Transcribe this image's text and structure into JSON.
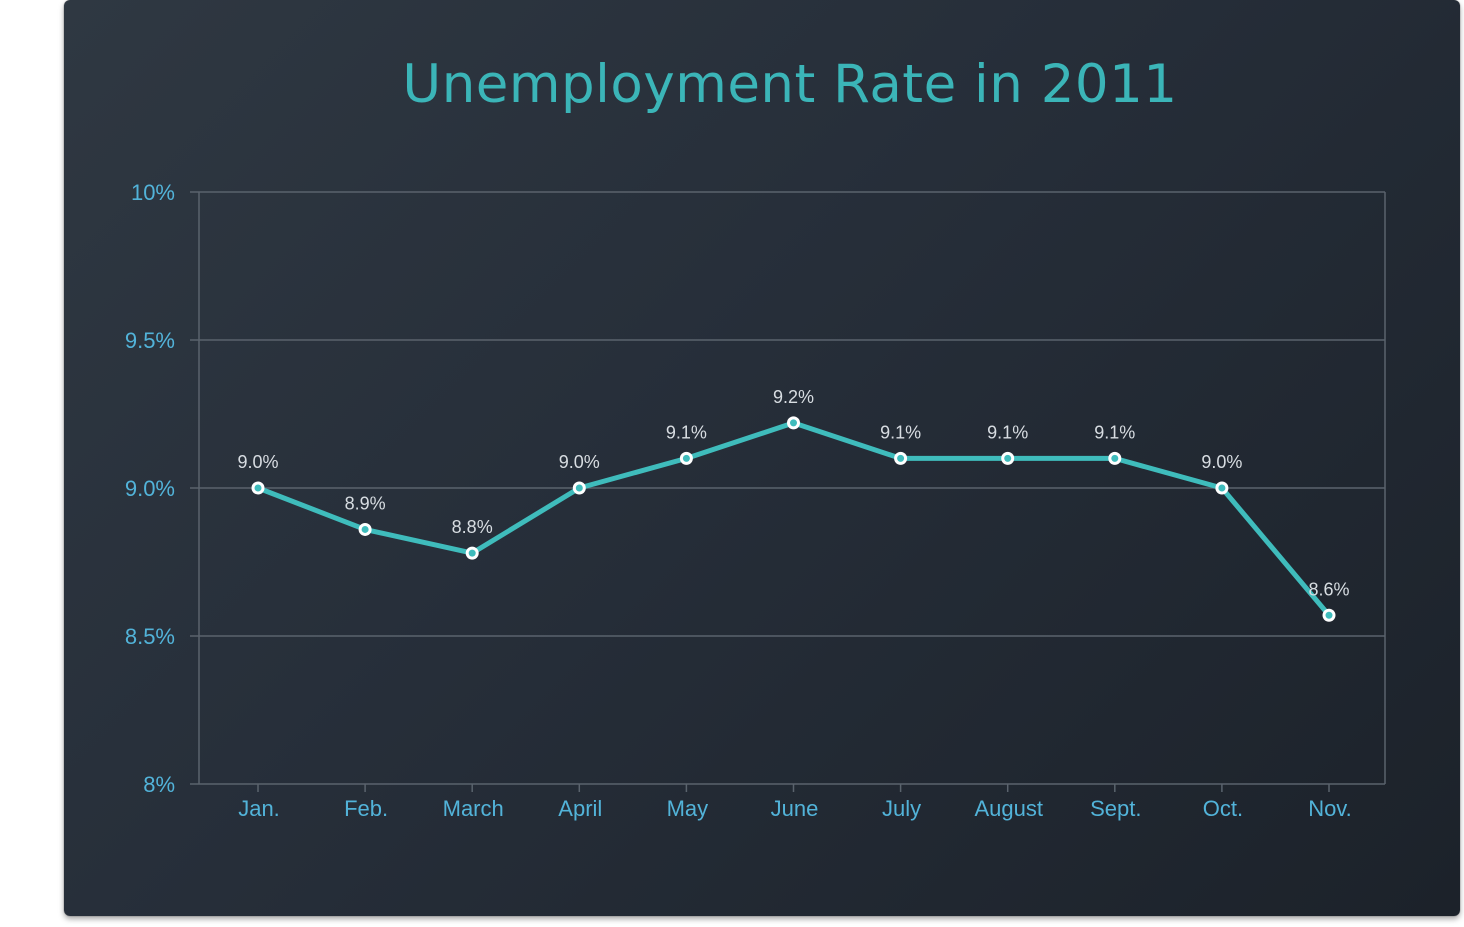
{
  "colors": {
    "accent": "#3fbcbc",
    "title": "#3bb5b8",
    "tick_label": "#52b3d9",
    "data_label": "#d8dde2",
    "grid": "#5a636d",
    "point_fill": "#ffffff"
  },
  "chart_data": {
    "type": "line",
    "title": "Unemployment Rate in 2011",
    "xlabel": "",
    "ylabel": "",
    "categories": [
      "Jan.",
      "Feb.",
      "March",
      "April",
      "May",
      "June",
      "July",
      "August",
      "Sept.",
      "Oct.",
      "Nov."
    ],
    "series": [
      {
        "values": [
          9.0,
          8.86,
          8.78,
          9.0,
          9.1,
          9.22,
          9.1,
          9.1,
          9.1,
          9.0,
          8.57
        ],
        "labels": [
          "9.0%",
          "8.9%",
          "8.8%",
          "9.0%",
          "9.1%",
          "9.2%",
          "9.1%",
          "9.1%",
          "9.1%",
          "9.0%",
          "8.6%"
        ]
      }
    ],
    "ylim": [
      8,
      10
    ],
    "y_ticks": [
      {
        "value": 10,
        "label": "10%"
      },
      {
        "value": 9.5,
        "label": "9.5%"
      },
      {
        "value": 9.0,
        "label": "9.0%"
      },
      {
        "value": 8.5,
        "label": "8.5%"
      },
      {
        "value": 8,
        "label": "8%"
      }
    ],
    "grid": true,
    "legend": "none"
  }
}
